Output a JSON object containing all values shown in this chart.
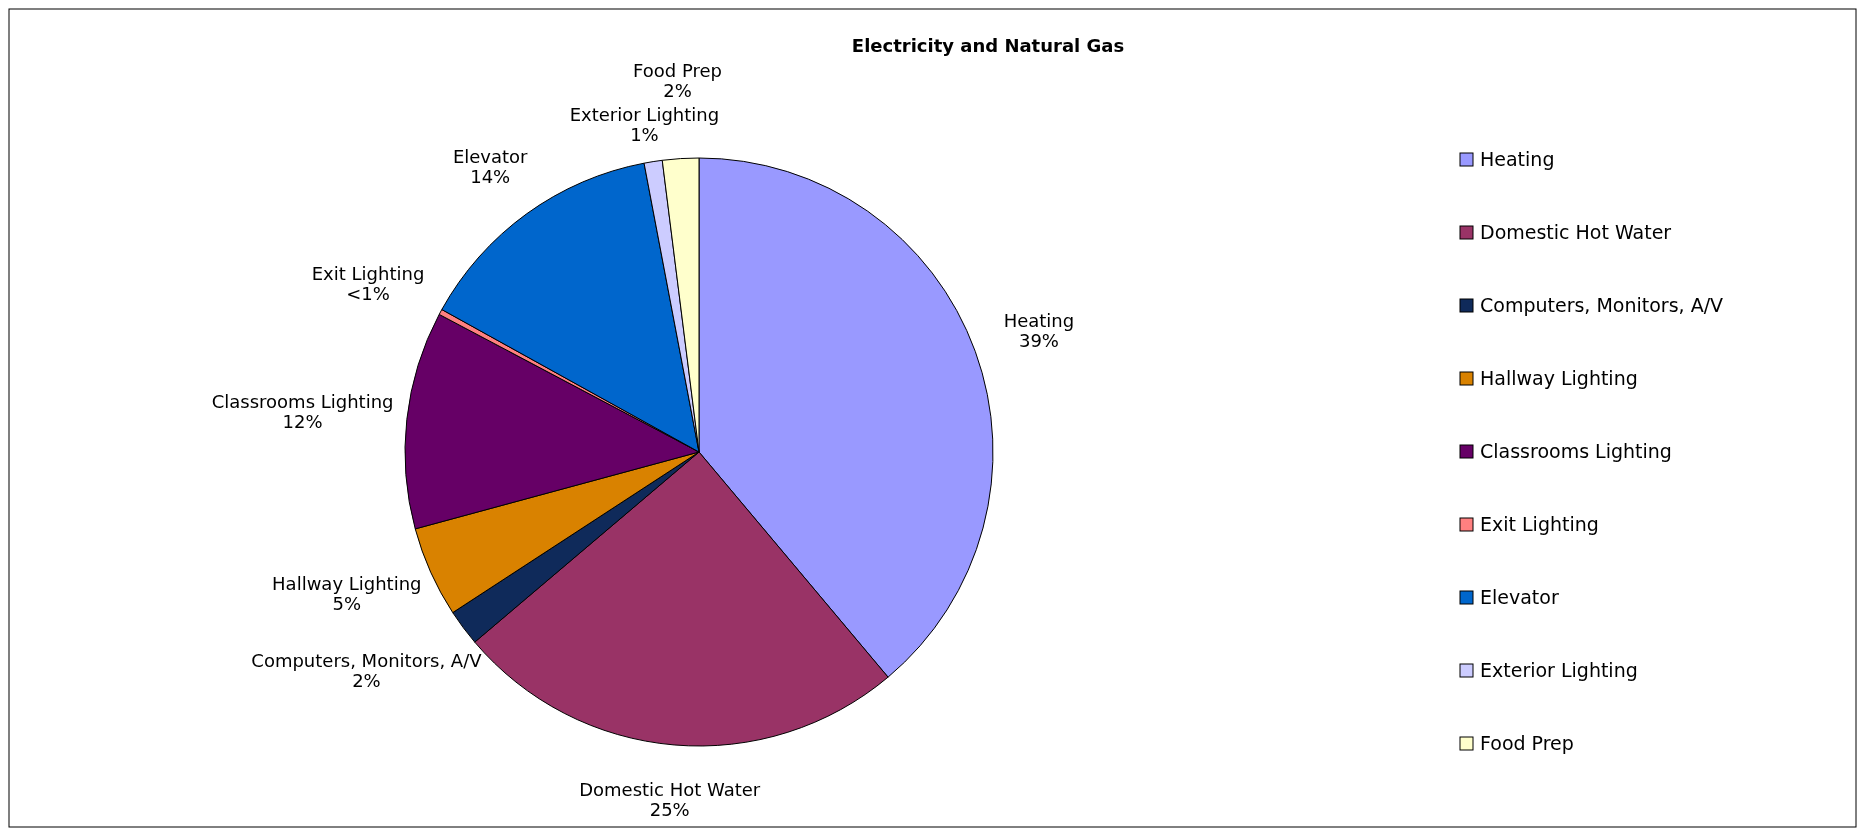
{
  "chart_data": {
    "type": "pie",
    "title": "Electricity and Natural Gas",
    "categories": [
      "Heating",
      "Domestic Hot Water",
      "Computers, Monitors, A/V",
      "Hallway Lighting",
      "Classrooms Lighting",
      "Exit Lighting",
      "Elevator",
      "Exterior Lighting",
      "Food Prep"
    ],
    "values": [
      39,
      25,
      2,
      5,
      12,
      0.3,
      14,
      1,
      2
    ],
    "value_labels": [
      "39%",
      "25%",
      "2%",
      "5%",
      "12%",
      "<1%",
      "14%",
      "1%",
      "2%"
    ],
    "colors": [
      "#9999ff",
      "#993366",
      "#0f2a5a",
      "#d98200",
      "#660066",
      "#ff8080",
      "#0066cc",
      "#ccccff",
      "#ffffcc"
    ],
    "legend": "right"
  }
}
